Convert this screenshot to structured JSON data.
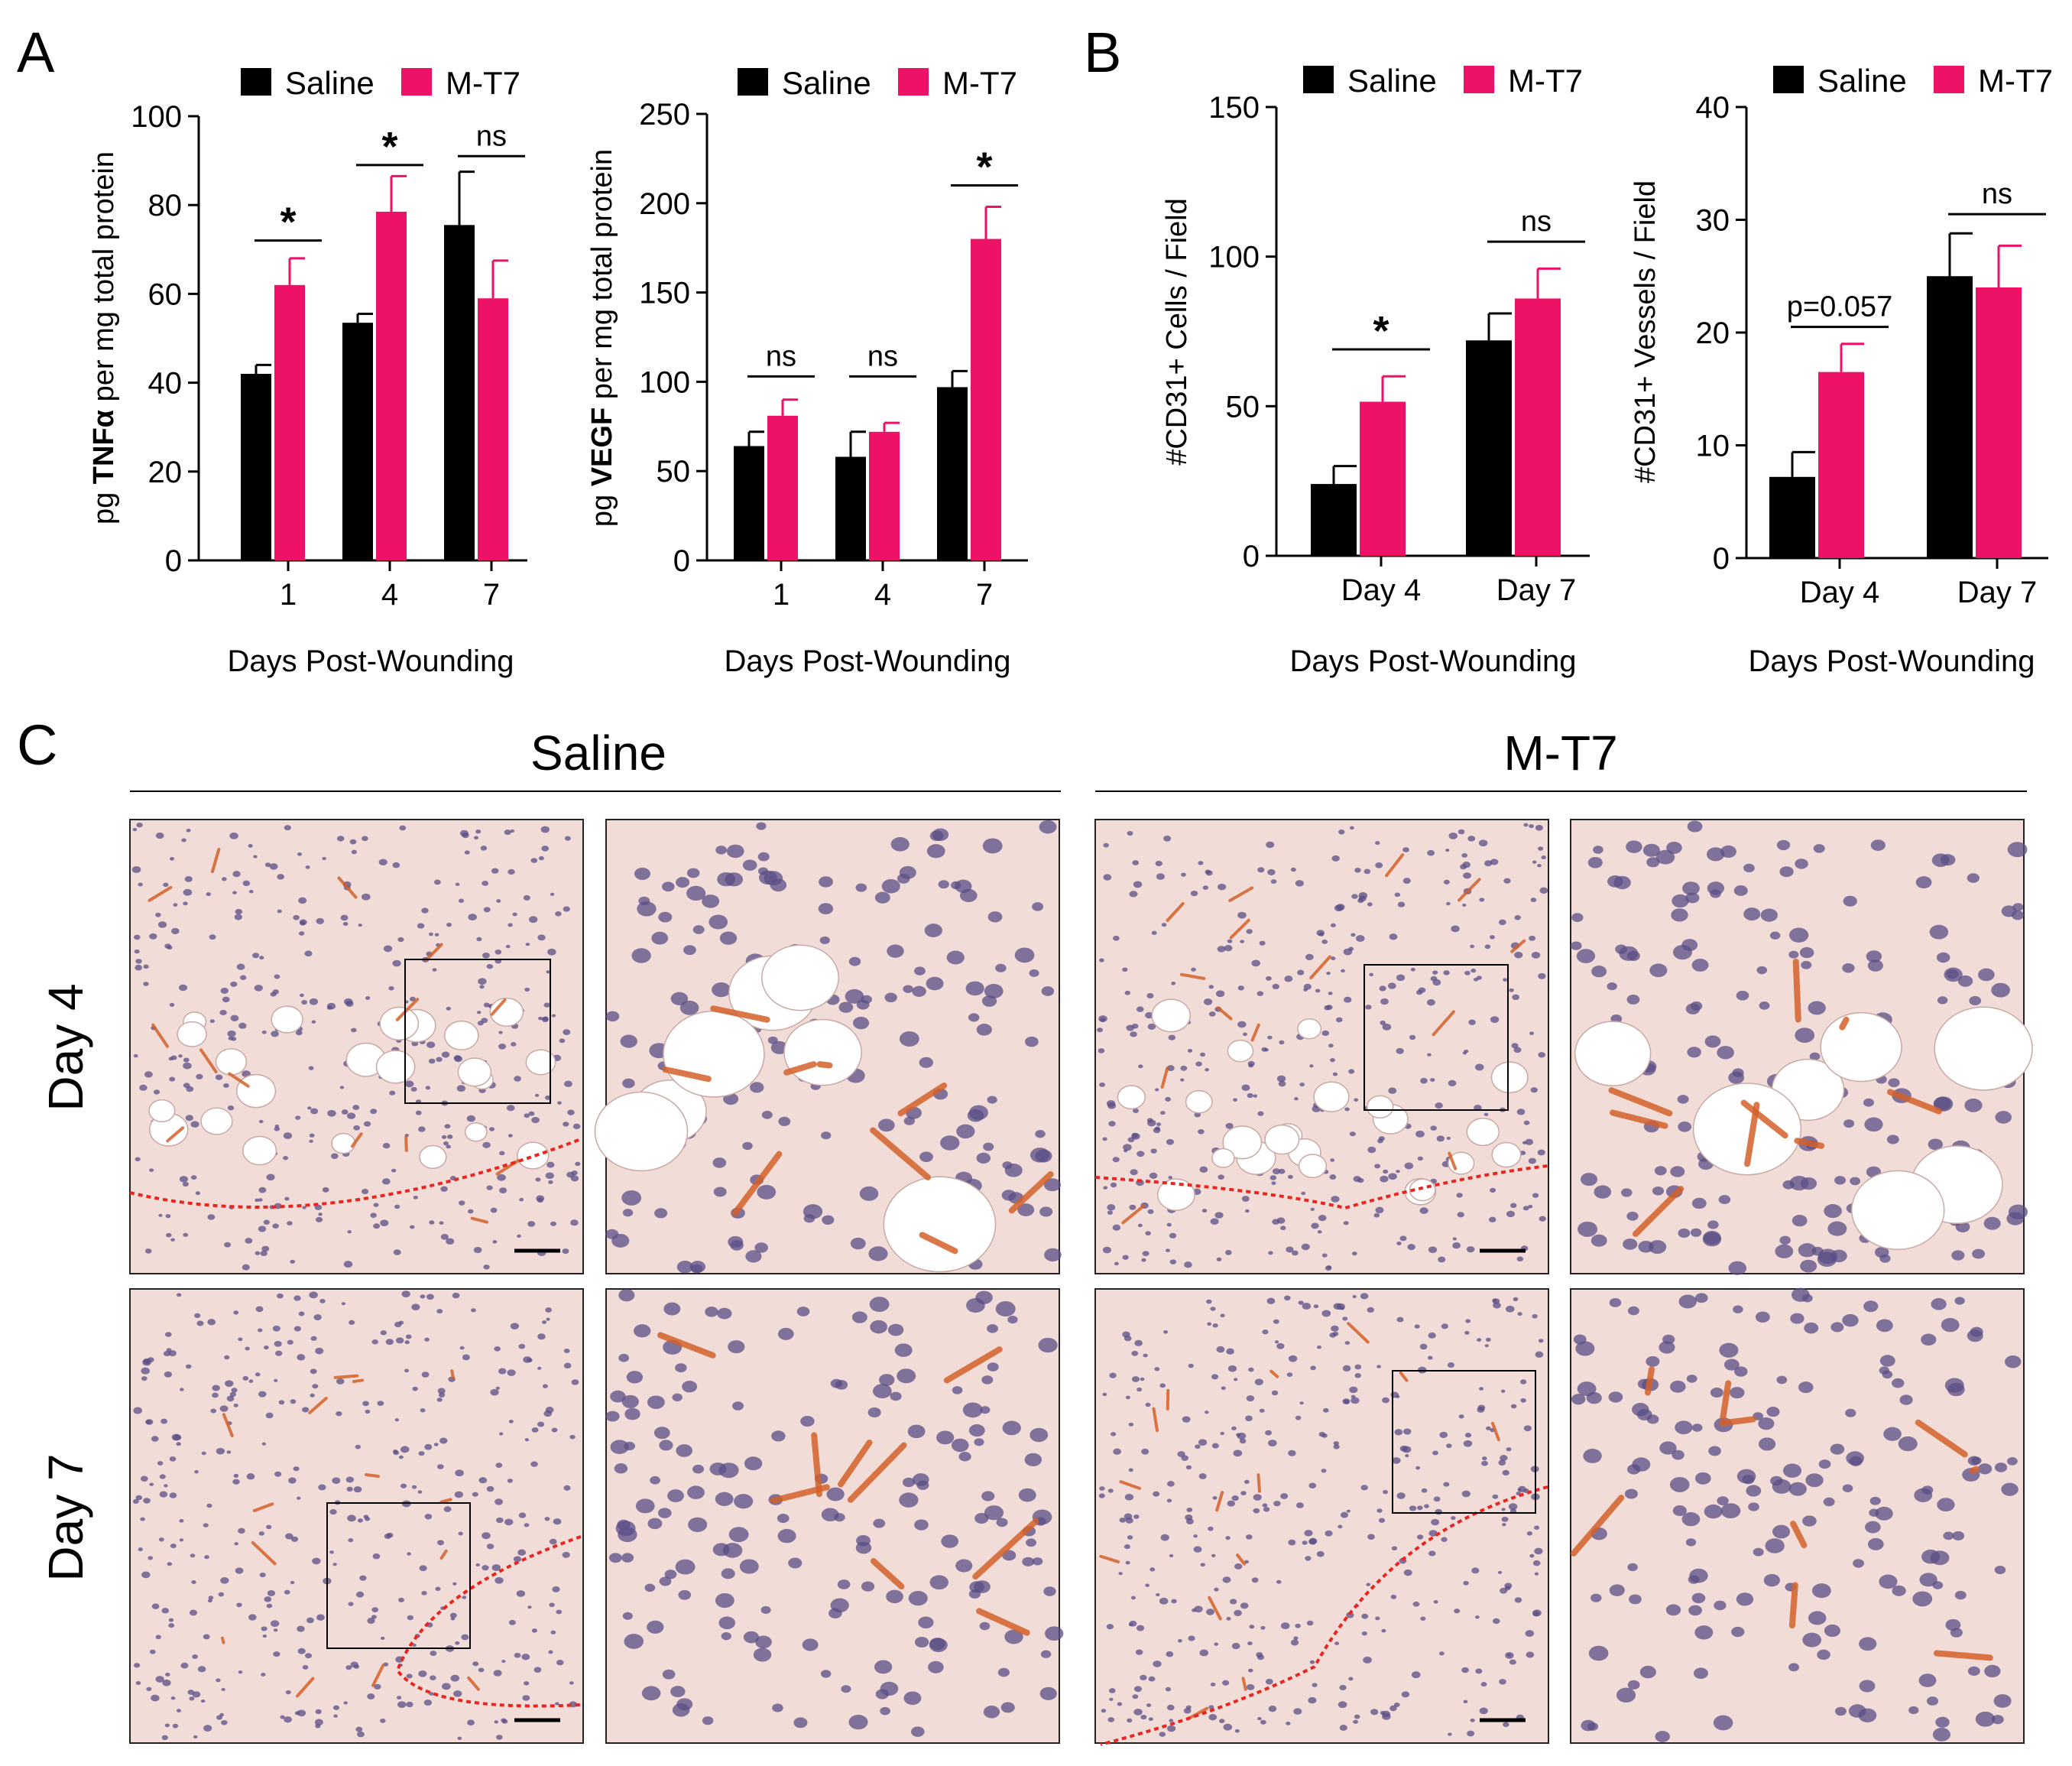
{
  "colors": {
    "saline": "#000000",
    "mt7": "#ed1167",
    "axis": "#000000",
    "dashed": "#e8261f",
    "tissue_bg": "#f1dcd8",
    "nuclei": "#5a4e86",
    "stain": "#d4612a"
  },
  "panel_labels": {
    "a": "A",
    "b": "B",
    "c": "C"
  },
  "panel_c": {
    "group_left": "Saline",
    "group_right": "M-T7",
    "row_top": "Day 4",
    "row_bottom": "Day 7"
  },
  "chart_data": [
    {
      "type": "bar",
      "panel": "A",
      "categories": [
        "1",
        "4",
        "7"
      ],
      "series": [
        {
          "name": "Saline",
          "values": [
            42,
            53.5,
            75.5
          ],
          "errors": [
            2,
            2,
            12
          ]
        },
        {
          "name": "M-T7",
          "values": [
            62,
            78.5,
            59
          ],
          "errors": [
            6,
            8,
            8.5
          ]
        }
      ],
      "xlabel": "Days Post-Wounding",
      "ylabel_pre": "pg ",
      "ylabel_bold": "TNFα",
      "ylabel_post": " per mg total protein",
      "ylim": [
        0,
        100
      ],
      "yticks": [
        0,
        20,
        40,
        60,
        80,
        100
      ],
      "legend": [
        "Saline",
        "M-T7"
      ],
      "significance": [
        {
          "category": 0,
          "label": "*",
          "y": 72
        },
        {
          "category": 1,
          "label": "*",
          "y": 89
        },
        {
          "category": 2,
          "label": "ns",
          "y": 91
        }
      ]
    },
    {
      "type": "bar",
      "panel": "A",
      "categories": [
        "1",
        "4",
        "7"
      ],
      "series": [
        {
          "name": "Saline",
          "values": [
            64,
            58,
            97
          ],
          "errors": [
            8,
            14,
            9
          ]
        },
        {
          "name": "M-T7",
          "values": [
            81,
            72,
            180
          ],
          "errors": [
            9,
            5,
            18
          ]
        }
      ],
      "xlabel": "Days Post-Wounding",
      "ylabel_pre": "pg ",
      "ylabel_bold": "VEGF",
      "ylabel_post": " per mg total protein",
      "ylim": [
        0,
        250
      ],
      "yticks": [
        0,
        50,
        100,
        150,
        200,
        250
      ],
      "legend": [
        "Saline",
        "M-T7"
      ],
      "significance": [
        {
          "category": 0,
          "label": "ns",
          "y": 103
        },
        {
          "category": 1,
          "label": "ns",
          "y": 103
        },
        {
          "category": 2,
          "label": "*",
          "y": 210
        }
      ]
    },
    {
      "type": "bar",
      "panel": "B",
      "categories": [
        "Day 4",
        "Day 7"
      ],
      "series": [
        {
          "name": "Saline",
          "values": [
            24,
            72
          ],
          "errors": [
            6,
            9
          ]
        },
        {
          "name": "M-T7",
          "values": [
            51.5,
            86
          ],
          "errors": [
            8.5,
            10
          ]
        }
      ],
      "xlabel": "Days Post-Wounding",
      "ylabel_pre": "#CD31+ Cells / Field",
      "ylabel_bold": "",
      "ylabel_post": "",
      "ylim": [
        0,
        150
      ],
      "yticks": [
        0,
        50,
        100,
        150
      ],
      "legend": [
        "Saline",
        "M-T7"
      ],
      "significance": [
        {
          "category": 0,
          "label": "*",
          "y": 69
        },
        {
          "category": 1,
          "label": "ns",
          "y": 105
        }
      ]
    },
    {
      "type": "bar",
      "panel": "B",
      "categories": [
        "Day 4",
        "Day 7"
      ],
      "series": [
        {
          "name": "Saline",
          "values": [
            7.2,
            25
          ],
          "errors": [
            2.2,
            3.8
          ]
        },
        {
          "name": "M-T7",
          "values": [
            16.5,
            24
          ],
          "errors": [
            2.5,
            3.7
          ]
        }
      ],
      "xlabel": "Days Post-Wounding",
      "ylabel_pre": "#CD31+ Vessels / Field",
      "ylabel_bold": "",
      "ylabel_post": "",
      "ylim": [
        0,
        40
      ],
      "yticks": [
        0,
        10,
        20,
        30,
        40
      ],
      "legend": [
        "Saline",
        "M-T7"
      ],
      "significance": [
        {
          "category": 0,
          "label": "p=0.057",
          "y": 20.5
        },
        {
          "category": 1,
          "label": "ns",
          "y": 30.5
        }
      ]
    }
  ]
}
